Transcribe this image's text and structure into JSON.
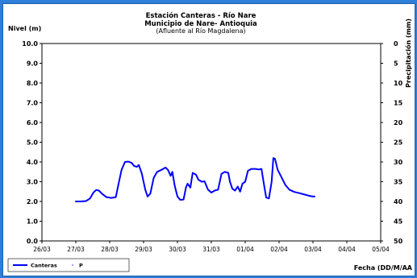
{
  "chart_data": {
    "type": "line",
    "title": "Estación Canteras - Río Nare",
    "subtitle_1": "Municipio de Nare- Antioquia",
    "subtitle_2": "(Afluente al Río Magdalena)",
    "ylabel": "Nivel (m)",
    "y2label": "Precipitación (mm)",
    "xlabel": "Fecha (DD/M/AA",
    "ylim": [
      0,
      10
    ],
    "y2lim": [
      0,
      50
    ],
    "y2_inverted": true,
    "grid": false,
    "legend_position": "bottom-left",
    "yticks": [
      "0.0",
      "1.0",
      "2.0",
      "3.0",
      "4.0",
      "5.0",
      "6.0",
      "7.0",
      "8.0",
      "9.0",
      "10.0"
    ],
    "y2ticks": [
      "0",
      "5",
      "10",
      "15",
      "20",
      "25",
      "30",
      "35",
      "40",
      "45",
      "50"
    ],
    "xticks": [
      "26/03",
      "27/03",
      "28/03",
      "29/03",
      "30/03",
      "31/03",
      "01/04",
      "02/04",
      "03/04",
      "04/04",
      "05/04"
    ],
    "series": [
      {
        "name": "Canteras",
        "color": "#0000ff",
        "points": [
          [
            1.0,
            2.0
          ],
          [
            1.15,
            2.0
          ],
          [
            1.3,
            2.02
          ],
          [
            1.42,
            2.15
          ],
          [
            1.52,
            2.45
          ],
          [
            1.6,
            2.58
          ],
          [
            1.68,
            2.55
          ],
          [
            1.78,
            2.38
          ],
          [
            1.9,
            2.22
          ],
          [
            2.05,
            2.18
          ],
          [
            2.18,
            2.22
          ],
          [
            2.25,
            2.8
          ],
          [
            2.35,
            3.6
          ],
          [
            2.45,
            4.0
          ],
          [
            2.55,
            4.02
          ],
          [
            2.65,
            3.95
          ],
          [
            2.72,
            3.8
          ],
          [
            2.8,
            3.75
          ],
          [
            2.86,
            3.85
          ],
          [
            2.95,
            3.4
          ],
          [
            3.05,
            2.6
          ],
          [
            3.12,
            2.25
          ],
          [
            3.2,
            2.4
          ],
          [
            3.3,
            3.2
          ],
          [
            3.4,
            3.5
          ],
          [
            3.55,
            3.62
          ],
          [
            3.65,
            3.72
          ],
          [
            3.72,
            3.6
          ],
          [
            3.8,
            3.3
          ],
          [
            3.85,
            3.5
          ],
          [
            3.92,
            2.8
          ],
          [
            4.0,
            2.25
          ],
          [
            4.08,
            2.08
          ],
          [
            4.18,
            2.1
          ],
          [
            4.25,
            2.7
          ],
          [
            4.3,
            2.9
          ],
          [
            4.38,
            2.7
          ],
          [
            4.45,
            3.45
          ],
          [
            4.55,
            3.35
          ],
          [
            4.62,
            3.1
          ],
          [
            4.72,
            3.0
          ],
          [
            4.8,
            3.02
          ],
          [
            4.9,
            2.6
          ],
          [
            5.0,
            2.45
          ],
          [
            5.1,
            2.55
          ],
          [
            5.2,
            2.6
          ],
          [
            5.3,
            3.4
          ],
          [
            5.4,
            3.5
          ],
          [
            5.5,
            3.45
          ],
          [
            5.55,
            3.0
          ],
          [
            5.62,
            2.65
          ],
          [
            5.7,
            2.55
          ],
          [
            5.78,
            2.75
          ],
          [
            5.85,
            2.5
          ],
          [
            5.92,
            2.9
          ],
          [
            6.0,
            3.0
          ],
          [
            6.08,
            3.55
          ],
          [
            6.18,
            3.65
          ],
          [
            6.3,
            3.65
          ],
          [
            6.4,
            3.62
          ],
          [
            6.48,
            3.65
          ],
          [
            6.55,
            2.9
          ],
          [
            6.62,
            2.2
          ],
          [
            6.7,
            2.15
          ],
          [
            6.78,
            3.0
          ],
          [
            6.83,
            4.2
          ],
          [
            6.88,
            4.15
          ],
          [
            6.96,
            3.6
          ],
          [
            7.05,
            3.3
          ],
          [
            7.18,
            2.85
          ],
          [
            7.3,
            2.6
          ],
          [
            7.45,
            2.48
          ],
          [
            7.6,
            2.42
          ],
          [
            7.75,
            2.35
          ],
          [
            7.9,
            2.28
          ],
          [
            8.0,
            2.25
          ],
          [
            8.05,
            2.25
          ]
        ]
      },
      {
        "name": "P",
        "color": "#4a6cff",
        "points": []
      }
    ]
  }
}
